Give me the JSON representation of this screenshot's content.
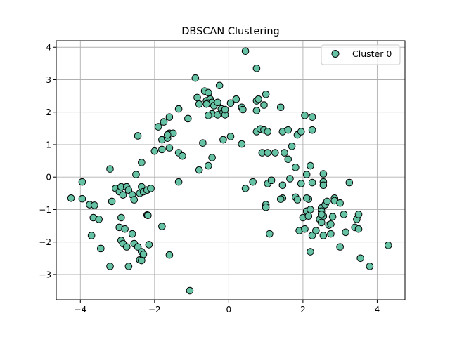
{
  "chart_data": {
    "type": "scatter",
    "title": "DBSCAN Clustering",
    "xlabel": "",
    "ylabel": "",
    "xlim": [
      -4.65,
      4.75
    ],
    "ylim": [
      -3.78,
      4.2
    ],
    "xticks": [
      -4,
      -2,
      0,
      2,
      4
    ],
    "yticks": [
      -3,
      -2,
      -1,
      0,
      1,
      2,
      3,
      4
    ],
    "xtick_labels": [
      "−4",
      "−2",
      "0",
      "2",
      "4"
    ],
    "ytick_labels": [
      "−3",
      "−2",
      "−1",
      "0",
      "1",
      "2",
      "3",
      "4"
    ],
    "grid": true,
    "legend_position": "top-right",
    "series": [
      {
        "name": "Cluster 0",
        "color": "#66c2a5",
        "edgecolor": "#000000",
        "points": [
          [
            -4.25,
            -0.65
          ],
          [
            -3.95,
            -0.67
          ],
          [
            -3.95,
            -0.15
          ],
          [
            -3.75,
            -0.85
          ],
          [
            -3.62,
            -0.87
          ],
          [
            -3.65,
            -1.25
          ],
          [
            -3.5,
            -1.3
          ],
          [
            -3.7,
            -1.8
          ],
          [
            -3.45,
            -2.2
          ],
          [
            -3.2,
            -2.75
          ],
          [
            -3.2,
            0.25
          ],
          [
            -3.15,
            -0.75
          ],
          [
            -3.05,
            -0.35
          ],
          [
            -2.95,
            -0.45
          ],
          [
            -2.9,
            -0.3
          ],
          [
            -2.85,
            -0.55
          ],
          [
            -2.75,
            -0.3
          ],
          [
            -2.7,
            -0.4
          ],
          [
            -2.6,
            -0.55
          ],
          [
            -2.55,
            -0.7
          ],
          [
            -2.5,
            0.08
          ],
          [
            -2.4,
            -0.5
          ],
          [
            -2.35,
            -0.3
          ],
          [
            -2.3,
            -0.45
          ],
          [
            -2.2,
            -0.4
          ],
          [
            -2.1,
            -0.35
          ],
          [
            -2.45,
            1.27
          ],
          [
            -2.35,
            0.45
          ],
          [
            -2.9,
            -1.25
          ],
          [
            -2.95,
            -1.55
          ],
          [
            -2.8,
            -1.6
          ],
          [
            -2.6,
            -1.75
          ],
          [
            -2.9,
            -1.95
          ],
          [
            -2.85,
            -2.05
          ],
          [
            -2.75,
            -2.15
          ],
          [
            -2.55,
            -2.05
          ],
          [
            -2.45,
            -2.15
          ],
          [
            -2.35,
            -2.3
          ],
          [
            -2.3,
            -2.38
          ],
          [
            -2.4,
            -2.55
          ],
          [
            -2.35,
            -2.57
          ],
          [
            -2.15,
            -2.08
          ],
          [
            -2.7,
            -2.75
          ],
          [
            -2.2,
            -1.17
          ],
          [
            -2.18,
            -1.18
          ],
          [
            -1.8,
            -1.52
          ],
          [
            -1.6,
            -2.4
          ],
          [
            -1.05,
            -3.5
          ],
          [
            -2.0,
            0.8
          ],
          [
            -1.8,
            0.85
          ],
          [
            -1.6,
            0.9
          ],
          [
            -1.35,
            0.75
          ],
          [
            -1.25,
            0.65
          ],
          [
            -1.35,
            -0.15
          ],
          [
            -1.8,
            1.15
          ],
          [
            -1.65,
            1.2
          ],
          [
            -1.6,
            1.35
          ],
          [
            -1.5,
            1.35
          ],
          [
            -1.65,
            1.3
          ],
          [
            -1.75,
            1.7
          ],
          [
            -1.9,
            1.55
          ],
          [
            -1.6,
            1.85
          ],
          [
            -1.35,
            2.1
          ],
          [
            -1.1,
            1.8
          ],
          [
            -0.9,
            3.05
          ],
          [
            -0.85,
            2.45
          ],
          [
            -0.8,
            2.25
          ],
          [
            -0.65,
            2.65
          ],
          [
            -0.6,
            2.35
          ],
          [
            -0.55,
            2.6
          ],
          [
            -0.5,
            2.4
          ],
          [
            -0.55,
            2.28
          ],
          [
            -0.45,
            2.3
          ],
          [
            -0.4,
            2.2
          ],
          [
            -0.45,
            1.95
          ],
          [
            -0.55,
            1.9
          ],
          [
            -0.6,
            2.25
          ],
          [
            -0.3,
            2.3
          ],
          [
            -0.25,
            2.82
          ],
          [
            -0.2,
            2.1
          ],
          [
            -0.3,
            1.92
          ],
          [
            -0.15,
            2.0
          ],
          [
            -0.1,
            1.92
          ],
          [
            -0.1,
            2.08
          ],
          [
            0.05,
            2.28
          ],
          [
            0.2,
            2.4
          ],
          [
            0.35,
            2.15
          ],
          [
            0.38,
            2.08
          ],
          [
            -0.7,
            1.05
          ],
          [
            -0.8,
            0.22
          ],
          [
            -0.55,
            0.35
          ],
          [
            -0.45,
            0.6
          ],
          [
            -0.15,
            1.15
          ],
          [
            0.05,
            1.25
          ],
          [
            0.45,
            3.88
          ],
          [
            0.75,
            3.35
          ],
          [
            0.75,
            2.35
          ],
          [
            0.8,
            2.4
          ],
          [
            0.75,
            2.05
          ],
          [
            0.95,
            2.22
          ],
          [
            1.0,
            2.55
          ],
          [
            1.4,
            2.15
          ],
          [
            0.35,
            1.02
          ],
          [
            0.45,
            -0.35
          ],
          [
            0.65,
            -0.15
          ],
          [
            0.75,
            1.4
          ],
          [
            0.85,
            1.48
          ],
          [
            0.95,
            1.45
          ],
          [
            1.05,
            1.4
          ],
          [
            0.9,
            0.75
          ],
          [
            1.05,
            0.75
          ],
          [
            1.25,
            0.75
          ],
          [
            1.5,
            0.75
          ],
          [
            1.6,
            0.55
          ],
          [
            1.7,
            0.95
          ],
          [
            1.8,
            0.3
          ],
          [
            1.45,
            1.4
          ],
          [
            1.6,
            1.45
          ],
          [
            1.85,
            1.3
          ],
          [
            1.95,
            1.4
          ],
          [
            2.05,
            1.9
          ],
          [
            2.25,
            1.85
          ],
          [
            2.25,
            1.45
          ],
          [
            2.2,
            0.35
          ],
          [
            2.1,
            0.08
          ],
          [
            1.65,
            -0.05
          ],
          [
            1.95,
            -0.2
          ],
          [
            1.45,
            -0.25
          ],
          [
            1.05,
            -0.2
          ],
          [
            1.15,
            -0.1
          ],
          [
            1.0,
            -0.85
          ],
          [
            1.0,
            -0.93
          ],
          [
            1.45,
            -0.65
          ],
          [
            1.4,
            -0.68
          ],
          [
            1.1,
            -1.75
          ],
          [
            1.8,
            -0.62
          ],
          [
            1.85,
            -0.7
          ],
          [
            1.9,
            -1.65
          ],
          [
            2.0,
            -1.25
          ],
          [
            2.1,
            -1.05
          ],
          [
            2.15,
            -0.68
          ],
          [
            2.1,
            -0.65
          ],
          [
            2.15,
            -1.2
          ],
          [
            2.2,
            -1.0
          ],
          [
            2.25,
            -0.17
          ],
          [
            2.05,
            -1.6
          ],
          [
            2.2,
            -2.3
          ],
          [
            2.25,
            -1.8
          ],
          [
            2.35,
            -1.65
          ],
          [
            2.45,
            -1.3
          ],
          [
            2.55,
            -1.2
          ],
          [
            2.5,
            -0.95
          ],
          [
            2.5,
            -1.05
          ],
          [
            2.6,
            -0.85
          ],
          [
            2.65,
            -0.75
          ],
          [
            2.55,
            -0.15
          ],
          [
            2.55,
            -0.25
          ],
          [
            2.55,
            0.1
          ],
          [
            2.5,
            -1.15
          ],
          [
            2.5,
            -1.4
          ],
          [
            2.55,
            -1.8
          ],
          [
            2.7,
            -1.48
          ],
          [
            2.75,
            -1.45
          ],
          [
            2.75,
            -1.75
          ],
          [
            2.8,
            -1.22
          ],
          [
            2.85,
            -0.65
          ],
          [
            2.85,
            -0.73
          ],
          [
            3.0,
            -0.8
          ],
          [
            3.1,
            -1.15
          ],
          [
            3.15,
            -1.7
          ],
          [
            3.0,
            -2.15
          ],
          [
            3.25,
            -0.17
          ],
          [
            3.4,
            -1.55
          ],
          [
            3.45,
            -1.3
          ],
          [
            3.5,
            -1.15
          ],
          [
            3.5,
            -1.6
          ],
          [
            3.55,
            -2.5
          ],
          [
            3.8,
            -2.75
          ],
          [
            4.3,
            -2.1
          ]
        ]
      }
    ]
  }
}
